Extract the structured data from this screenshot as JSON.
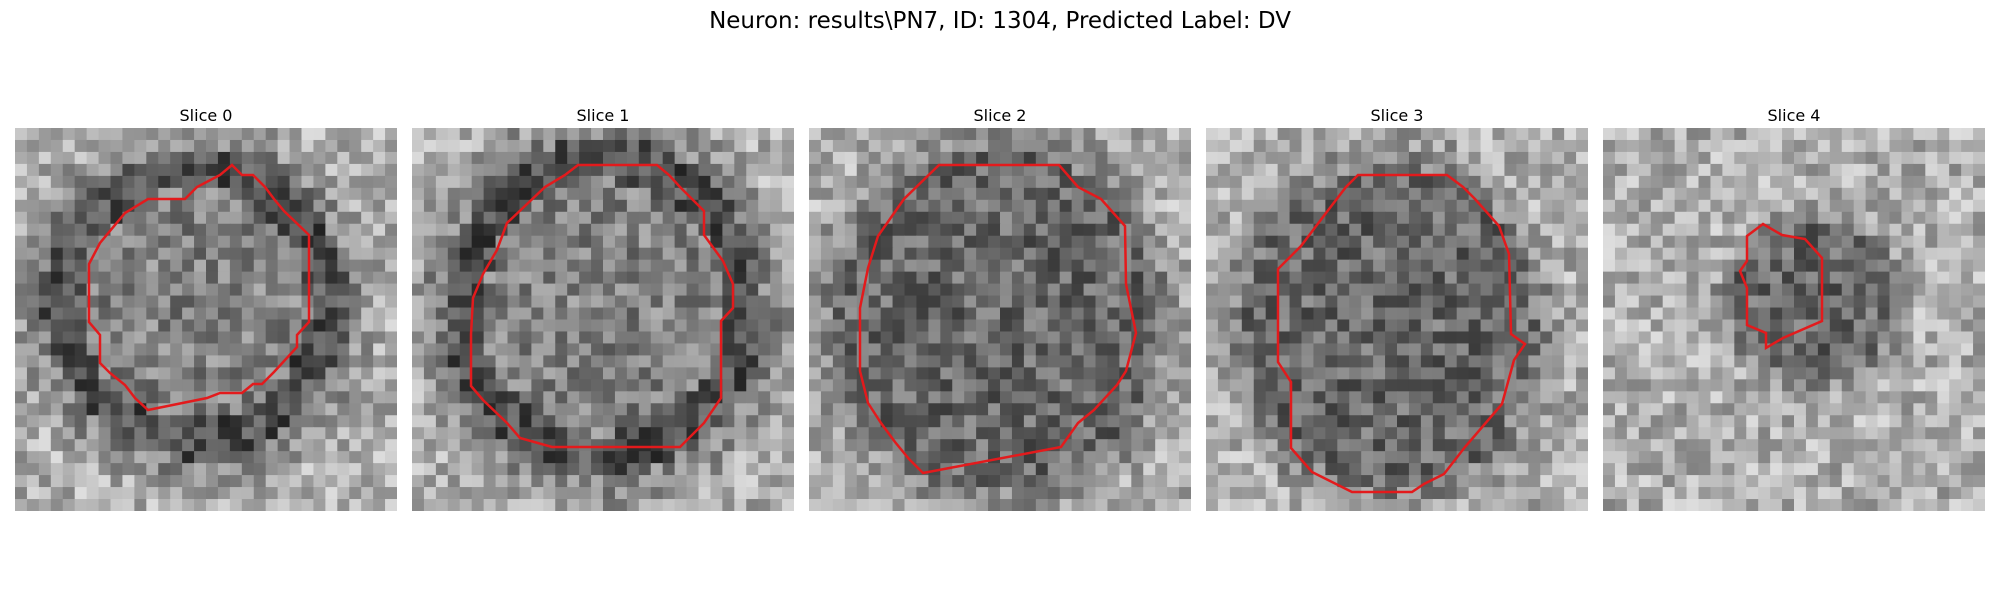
{
  "figure": {
    "title": "Neuron: results\\PN7, ID: 1304, Predicted Label: DV"
  },
  "style": {
    "contour_color": "#e31a1c",
    "colormap": "gray"
  },
  "slices": [
    {
      "title": "Slice 0"
    },
    {
      "title": "Slice 1"
    },
    {
      "title": "Slice 2"
    },
    {
      "title": "Slice 3"
    },
    {
      "title": "Slice 4"
    }
  ]
}
